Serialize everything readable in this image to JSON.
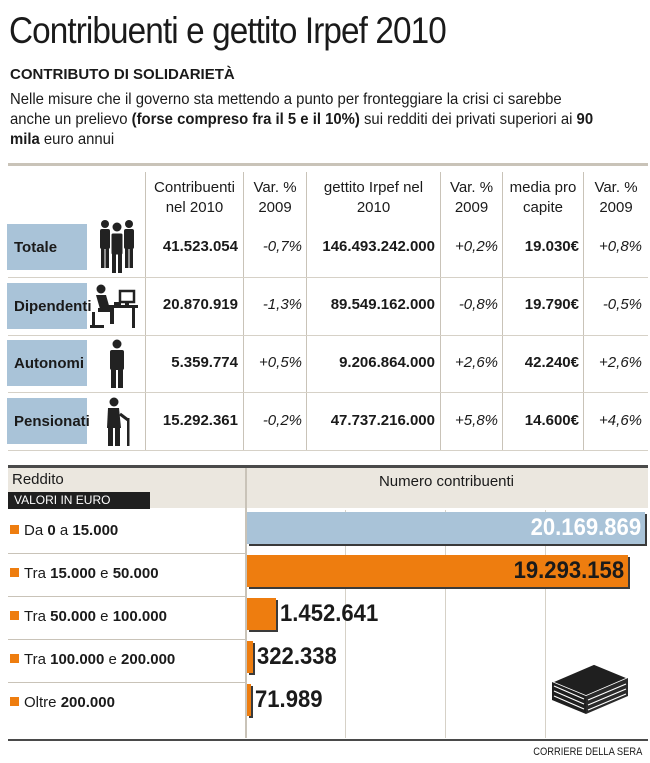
{
  "title": "Contribuenti e gettito Irpef 2010",
  "subtitle": "CONTRIBUTO DI SOLIDARIETÀ",
  "intro": {
    "part1": "Nelle misure che il governo sta mettendo a punto per fronteggiare la crisi ci sarebbe anche un prelievo ",
    "bold1": "(forse compreso fra il 5 e il 10%)",
    "part2": " sui redditi dei privati superiori ai ",
    "bold2": "90 mila",
    "part3": " euro annui"
  },
  "table": {
    "headers": [
      "Contribuenti nel 2010",
      "Var. % 2009",
      "gettito Irpef nel 2010",
      "Var. % 2009",
      "media pro capite",
      "Var. % 2009"
    ],
    "rows": [
      {
        "label": "Totale",
        "icon": "group-people-icon",
        "contribuenti": "41.523.054",
        "var1": "-0,7%",
        "gettito": "146.493.242.000",
        "var2": "+0,2%",
        "media": "19.030€",
        "var3": "+0,8%"
      },
      {
        "label": "Dipendenti",
        "icon": "office-worker-icon",
        "contribuenti": "20.870.919",
        "var1": "-1,3%",
        "gettito": "89.549.162.000",
        "var2": "-0,8%",
        "media": "19.790€",
        "var3": "-0,5%"
      },
      {
        "label": "Autonomi",
        "icon": "standing-person-icon",
        "contribuenti": "5.359.774",
        "var1": "+0,5%",
        "gettito": "9.206.864.000",
        "var2": "+2,6%",
        "media": "42.240€",
        "var3": "+2,6%"
      },
      {
        "label": "Pensionati",
        "icon": "elderly-person-cane-icon",
        "contribuenti": "15.292.361",
        "var1": "-0,2%",
        "gettito": "47.737.216.000",
        "var2": "+5,8%",
        "media": "14.600€",
        "var3": "+4,6%"
      }
    ]
  },
  "bars_header": {
    "reddito": "Reddito",
    "valori": "VALORI IN EURO",
    "numero": "Numero contribuenti"
  },
  "chart_data": {
    "type": "bar",
    "orientation": "horizontal",
    "title": "",
    "xlabel": "Numero contribuenti",
    "ylabel": "Reddito",
    "categories": [
      "Da 0 a 15.000",
      "Tra 15.000 e 50.000",
      "Tra 50.000 e 100.000",
      "Tra 100.000 e 200.000",
      "Oltre 200.000"
    ],
    "values": [
      20169869,
      19293158,
      1452641,
      322338,
      71989
    ],
    "value_labels": [
      "20.169.869",
      "19.293.158",
      "1.452.641",
      "322.338",
      "71.989"
    ],
    "colors": [
      "#a9c3d8",
      "#ee7d0f",
      "#ee7d0f",
      "#ee7d0f",
      "#ee7d0f"
    ],
    "xlim": [
      0,
      20169869
    ]
  },
  "category_parts": [
    {
      "a": "Da ",
      "b": "0",
      "c": " a ",
      "d": "15.000"
    },
    {
      "a": "Tra ",
      "b": "15.000",
      "c": " e ",
      "d": "50.000"
    },
    {
      "a": "Tra ",
      "b": "50.000",
      "c": " e ",
      "d": "100.000"
    },
    {
      "a": "Tra ",
      "b": "100.000",
      "c": " e ",
      "d": "200.000"
    },
    {
      "a": "Oltre ",
      "b": "200.000",
      "c": "",
      "d": ""
    }
  ],
  "decor_icon": "money-stack-icon",
  "credit": "CORRIERE DELLA SERA"
}
